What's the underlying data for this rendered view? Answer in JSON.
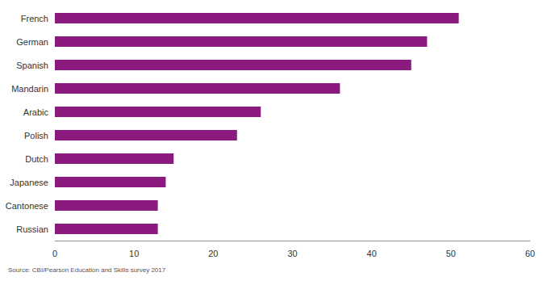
{
  "chart_data": {
    "type": "bar",
    "orientation": "horizontal",
    "categories": [
      "French",
      "German",
      "Spanish",
      "Mandarin",
      "Arabic",
      "Polish",
      "Dutch",
      "Japanese",
      "Cantonese",
      "Russian"
    ],
    "values": [
      51,
      47,
      45,
      36,
      26,
      23,
      15,
      14,
      13,
      13
    ],
    "color": "#8b1a7e",
    "xlim": [
      0,
      60
    ],
    "xticks": [
      0,
      10,
      20,
      30,
      40,
      50,
      60
    ],
    "grid": false,
    "annotation": "Source: CBI/Pearson Education and Skills survey 2017"
  }
}
